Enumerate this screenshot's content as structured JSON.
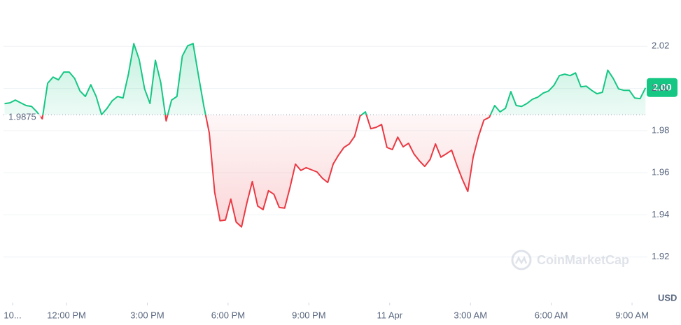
{
  "chart_data": {
    "type": "line",
    "x": [
      9.7,
      9.9,
      10.1,
      10.3,
      10.5,
      10.7,
      10.9,
      11.1,
      11.3,
      11.5,
      11.7,
      11.9,
      12.1,
      12.3,
      12.5,
      12.7,
      12.9,
      13.1,
      13.3,
      13.5,
      13.7,
      13.9,
      14.1,
      14.3,
      14.5,
      14.7,
      14.9,
      15.1,
      15.3,
      15.5,
      15.7,
      15.9,
      16.1,
      16.3,
      16.5,
      16.7,
      16.9,
      17.1,
      17.3,
      17.5,
      17.7,
      17.9,
      18.1,
      18.3,
      18.5,
      18.7,
      18.9,
      19.1,
      19.3,
      19.5,
      19.7,
      19.9,
      20.1,
      20.3,
      20.5,
      20.7,
      20.9,
      21.1,
      21.3,
      21.5,
      21.7,
      21.9,
      22.1,
      22.3,
      22.5,
      22.7,
      22.9,
      23.1,
      23.3,
      23.5,
      23.7,
      23.9,
      24.1,
      24.3,
      24.5,
      24.7,
      24.9,
      25.1,
      25.3,
      25.5,
      25.7,
      25.9,
      26.1,
      26.3,
      26.5,
      26.7,
      26.9,
      27.1,
      27.3,
      27.5,
      27.7,
      27.9,
      28.1,
      28.3,
      28.5,
      28.7,
      28.9,
      29.1,
      29.3,
      29.5,
      29.7,
      29.9,
      30.1,
      30.3,
      30.5,
      30.7,
      30.9,
      31.1,
      31.3,
      31.5,
      31.7,
      31.9,
      32.1,
      32.3,
      32.5,
      32.7,
      32.9,
      33.1,
      33.3,
      33.5
    ],
    "values": [
      1.9928,
      1.9932,
      1.9945,
      1.9932,
      1.9919,
      1.9915,
      1.9889,
      1.9856,
      2.0025,
      2.0054,
      2.0041,
      2.0078,
      2.0078,
      2.0048,
      1.9988,
      1.9962,
      2.0018,
      1.9962,
      1.9876,
      1.9905,
      1.9942,
      1.9962,
      1.9955,
      2.0068,
      2.0213,
      2.0137,
      1.9998,
      1.9929,
      2.0134,
      2.0028,
      1.9846,
      1.9945,
      1.9962,
      2.0154,
      2.0203,
      2.0213,
      2.0061,
      1.9915,
      1.9789,
      1.9508,
      1.9372,
      1.9376,
      1.9475,
      1.9366,
      1.9343,
      1.9458,
      1.9558,
      1.9442,
      1.9425,
      1.9515,
      1.9498,
      1.9435,
      1.9432,
      1.9531,
      1.9641,
      1.9611,
      1.9624,
      1.9614,
      1.9604,
      1.9574,
      1.9554,
      1.9641,
      1.9684,
      1.972,
      1.9737,
      1.9773,
      1.9869,
      1.9889,
      1.9809,
      1.9816,
      1.9829,
      1.972,
      1.971,
      1.9769,
      1.9723,
      1.974,
      1.969,
      1.9657,
      1.963,
      1.9663,
      1.9737,
      1.9674,
      1.969,
      1.9707,
      1.9634,
      1.9568,
      1.9511,
      1.9674,
      1.9773,
      1.985,
      1.9863,
      1.9919,
      1.9889,
      1.9906,
      1.9985,
      1.9919,
      1.9915,
      1.9929,
      1.9949,
      1.9959,
      1.9978,
      1.9988,
      2.0015,
      2.0061,
      2.0068,
      2.0061,
      2.0074,
      2.0008,
      2.0011,
      1.9991,
      1.9975,
      1.9982,
      2.0087,
      2.0048,
      1.9998,
      1.9991,
      1.9991,
      1.9955,
      1.9952,
      2.0003
    ],
    "last_value_label": "2.00",
    "baseline": 1.9875,
    "colors": {
      "up": "#16c784",
      "down": "#ea3943"
    },
    "xlim": [
      9.66,
      33.57
    ],
    "xticks": [
      {
        "value": 10,
        "label": "10..."
      },
      {
        "value": 12,
        "label": "12:00 PM"
      },
      {
        "value": 15,
        "label": "3:00 PM"
      },
      {
        "value": 18,
        "label": "6:00 PM"
      },
      {
        "value": 21,
        "label": "9:00 PM"
      },
      {
        "value": 24,
        "label": "11 Apr"
      },
      {
        "value": 27,
        "label": "3:00 AM"
      },
      {
        "value": 30,
        "label": "6:00 AM"
      },
      {
        "value": 33,
        "label": "9:00 AM"
      }
    ],
    "ylim": [
      1.905,
      2.04
    ],
    "yticks": [
      1.92,
      1.94,
      1.96,
      1.98,
      {
        "value": 2.0,
        "label": "2.00"
      },
      2.02
    ],
    "grid": true,
    "currency": "USD",
    "watermark": "CoinMarketCap"
  }
}
